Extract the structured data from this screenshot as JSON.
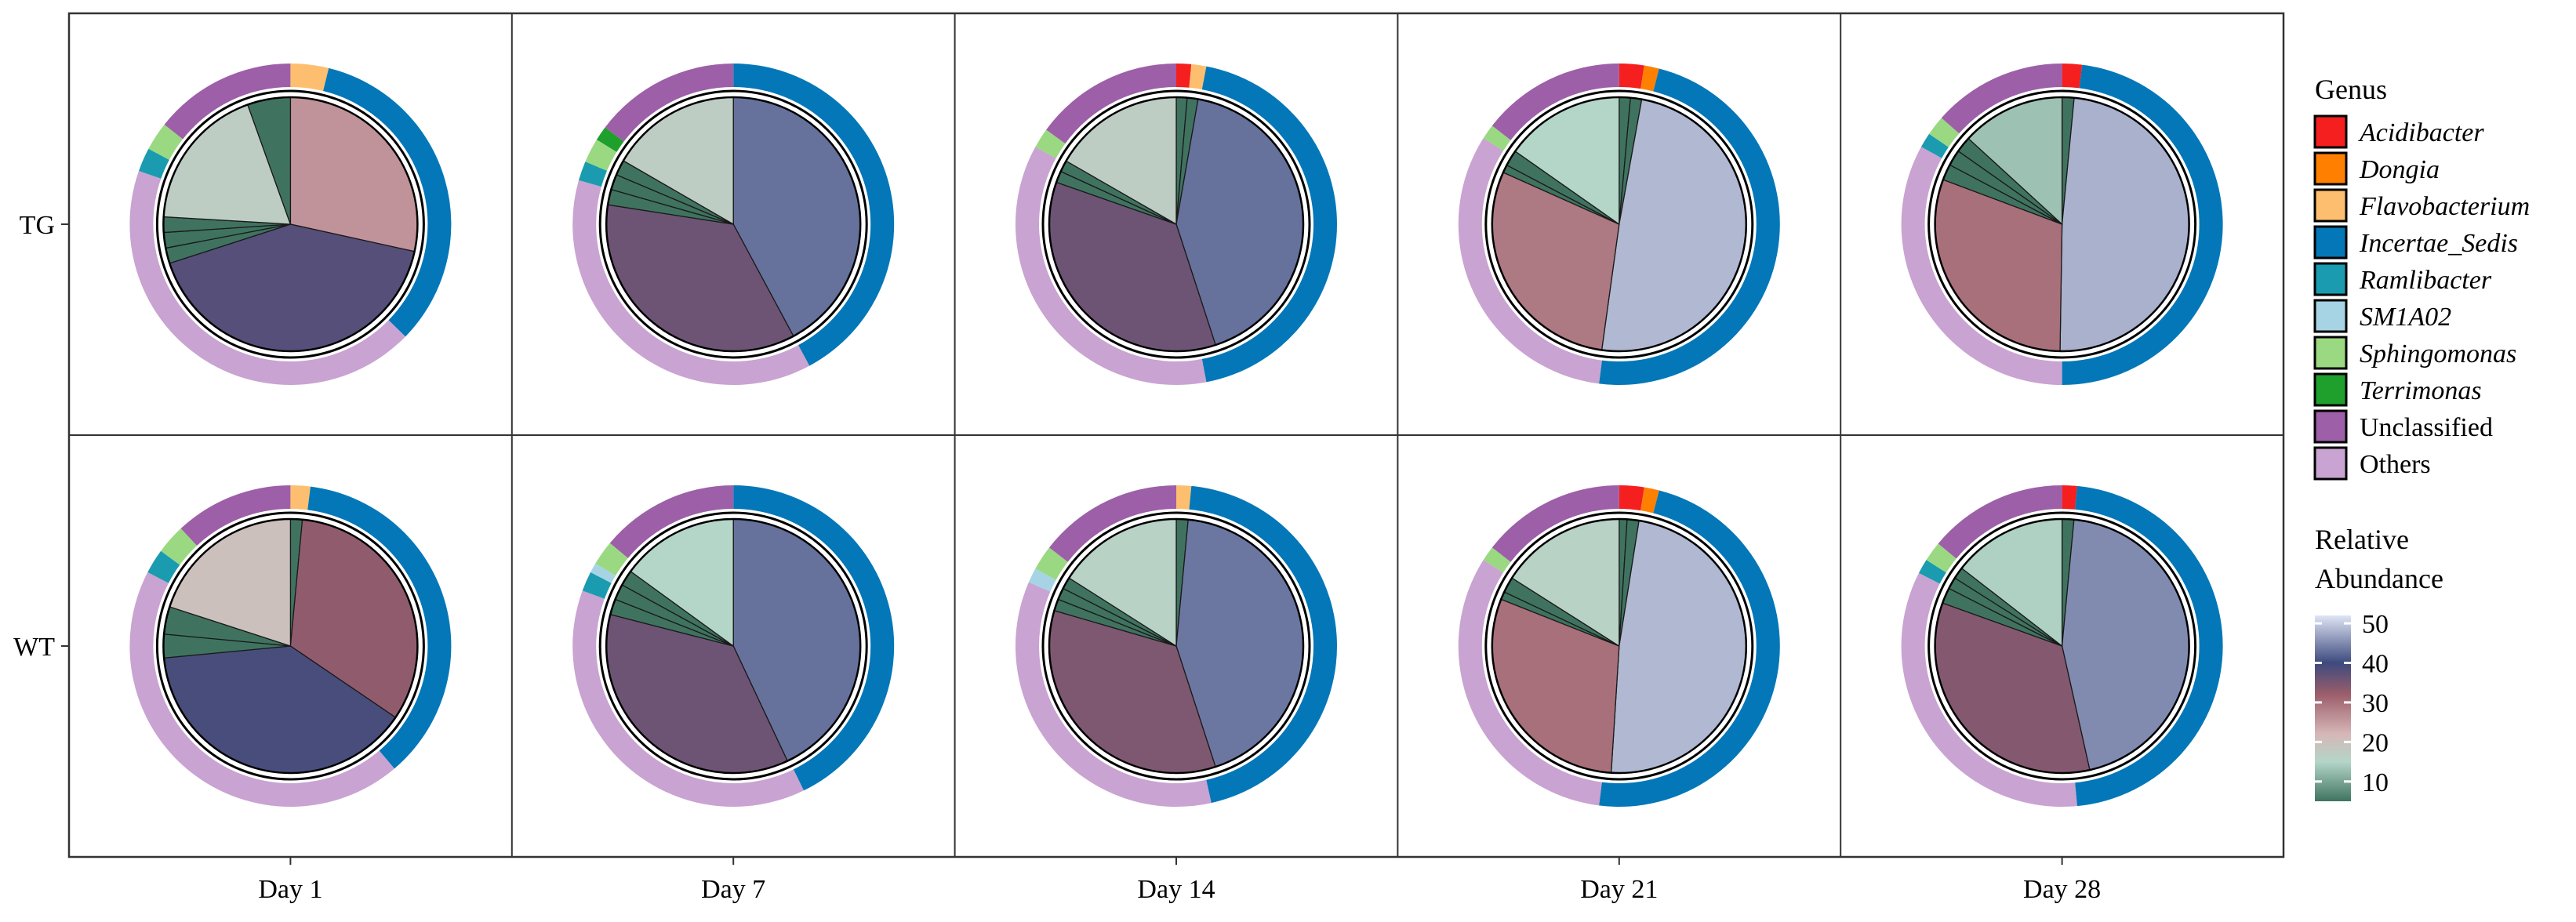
{
  "chart_data": {
    "type": "pie",
    "subtype": "faceted-donut-with-inner-pie",
    "columns": [
      "Day 1",
      "Day 7",
      "Day 14",
      "Day 21",
      "Day 28"
    ],
    "rows": [
      "TG",
      "WT"
    ],
    "legend_genus": {
      "title": "Genus",
      "entries": [
        {
          "name": "Acidibacter",
          "color": "#f51f1f",
          "italic": true
        },
        {
          "name": "Dongia",
          "color": "#ff8000",
          "italic": true
        },
        {
          "name": "Flavobacterium",
          "color": "#fdbf6f",
          "italic": true
        },
        {
          "name": "Incertae_Sedis",
          "color": "#0377b8",
          "italic": true
        },
        {
          "name": "Ramlibacter",
          "color": "#1a9bb0",
          "italic": true
        },
        {
          "name": "SM1A02",
          "color": "#a6d4e4",
          "italic": true
        },
        {
          "name": "Sphingomonas",
          "color": "#9ad981",
          "italic": true
        },
        {
          "name": "Terrimonas",
          "color": "#1f9f2c",
          "italic": true
        },
        {
          "name": "Unclassified",
          "color": "#9d5fa8",
          "italic": false
        },
        {
          "name": "Others",
          "color": "#c9a3d1",
          "italic": false
        }
      ]
    },
    "legend_abundance": {
      "title_lines": [
        "Relative",
        "Abundance"
      ],
      "ticks": [
        10,
        20,
        30,
        40,
        50
      ],
      "range": [
        5,
        52
      ],
      "stops": [
        {
          "v": 5,
          "c": "#3f7360"
        },
        {
          "v": 15,
          "c": "#b4d6c8"
        },
        {
          "v": 22,
          "c": "#d6b7b7"
        },
        {
          "v": 32,
          "c": "#9c5e6b"
        },
        {
          "v": 40,
          "c": "#3d4a7e"
        },
        {
          "v": 52,
          "c": "#dfe5f5"
        }
      ]
    },
    "panels": [
      {
        "row": "TG",
        "col": "Day 1",
        "outer": [
          {
            "g": "Flavobacterium",
            "v": 4
          },
          {
            "g": "Incertae_Sedis",
            "v": 35
          },
          {
            "g": "Others",
            "v": 45
          },
          {
            "g": "Ramlibacter",
            "v": 2.5
          },
          {
            "g": "Sphingomonas",
            "v": 3
          },
          {
            "g": "Unclassified",
            "v": 15
          }
        ],
        "inner": [
          {
            "v": 26
          },
          {
            "v": 38
          },
          {
            "v": 1.8
          },
          {
            "v": 1.8
          },
          {
            "v": 1.8
          },
          {
            "v": 17
          },
          {
            "v": 5
          }
        ]
      },
      {
        "row": "TG",
        "col": "Day 7",
        "outer": [
          {
            "g": "Incertae_Sedis",
            "v": 43
          },
          {
            "g": "Others",
            "v": 38
          },
          {
            "g": "Ramlibacter",
            "v": 2
          },
          {
            "g": "Sphingomonas",
            "v": 2.5
          },
          {
            "g": "Terrimonas",
            "v": 1.5
          },
          {
            "g": "Unclassified",
            "v": 15
          }
        ],
        "inner": [
          {
            "v": 43
          },
          {
            "v": 36
          },
          {
            "v": 2
          },
          {
            "v": 2
          },
          {
            "v": 2
          },
          {
            "v": 17
          }
        ]
      },
      {
        "row": "TG",
        "col": "Day 14",
        "outer": [
          {
            "g": "Acidibacter",
            "v": 1.5
          },
          {
            "g": "Flavobacterium",
            "v": 1.5
          },
          {
            "g": "Incertae_Sedis",
            "v": 44
          },
          {
            "g": "Others",
            "v": 36
          },
          {
            "g": "Sphingomonas",
            "v": 2
          },
          {
            "g": "Unclassified",
            "v": 15
          }
        ],
        "inner": [
          {
            "v": 1.4
          },
          {
            "v": 1.4
          },
          {
            "v": 43
          },
          {
            "v": 36
          },
          {
            "v": 1.5
          },
          {
            "v": 1.5
          },
          {
            "v": 17
          }
        ]
      },
      {
        "row": "TG",
        "col": "Day 21",
        "outer": [
          {
            "g": "Acidibacter",
            "v": 2.5
          },
          {
            "g": "Dongia",
            "v": 1.5
          },
          {
            "g": "Incertae_Sedis",
            "v": 48
          },
          {
            "g": "Others",
            "v": 32
          },
          {
            "g": "Sphingomonas",
            "v": 1.5
          },
          {
            "g": "Unclassified",
            "v": 14.5
          }
        ],
        "inner": [
          {
            "v": 1.4
          },
          {
            "v": 1.4
          },
          {
            "v": 48.5
          },
          {
            "v": 29
          },
          {
            "v": 1
          },
          {
            "v": 2
          },
          {
            "v": 15
          }
        ]
      },
      {
        "row": "TG",
        "col": "Day 28",
        "outer": [
          {
            "g": "Acidibacter",
            "v": 2
          },
          {
            "g": "Incertae_Sedis",
            "v": 48
          },
          {
            "g": "Others",
            "v": 33
          },
          {
            "g": "Ramlibacter",
            "v": 1.5
          },
          {
            "g": "Sphingomonas",
            "v": 2
          },
          {
            "g": "Unclassified",
            "v": 13.5
          }
        ],
        "inner": [
          {
            "v": 1.5
          },
          {
            "v": 48
          },
          {
            "v": 30
          },
          {
            "v": 2
          },
          {
            "v": 2
          },
          {
            "v": 2
          },
          {
            "v": 13
          }
        ]
      },
      {
        "row": "WT",
        "col": "Day 1",
        "outer": [
          {
            "g": "Flavobacterium",
            "v": 2
          },
          {
            "g": "Incertae_Sedis",
            "v": 37
          },
          {
            "g": "Others",
            "v": 44
          },
          {
            "g": "Ramlibacter",
            "v": 2.5
          },
          {
            "g": "Sphingomonas",
            "v": 3
          },
          {
            "g": "Unclassified",
            "v": 12
          }
        ],
        "inner": [
          {
            "v": 1.5
          },
          {
            "v": 33
          },
          {
            "v": 39
          },
          {
            "v": 3
          },
          {
            "v": 3.5
          },
          {
            "v": 20
          }
        ]
      },
      {
        "row": "WT",
        "col": "Day 7",
        "outer": [
          {
            "g": "Incertae_Sedis",
            "v": 43
          },
          {
            "g": "Others",
            "v": 38
          },
          {
            "g": "Ramlibacter",
            "v": 2
          },
          {
            "g": "SM1A02",
            "v": 1
          },
          {
            "g": "Sphingomonas",
            "v": 2.5
          },
          {
            "g": "Unclassified",
            "v": 14
          }
        ],
        "inner": [
          {
            "v": 43
          },
          {
            "v": 36
          },
          {
            "v": 2
          },
          {
            "v": 2
          },
          {
            "v": 2
          },
          {
            "v": 15
          }
        ]
      },
      {
        "row": "WT",
        "col": "Day 14",
        "outer": [
          {
            "g": "Flavobacterium",
            "v": 1.5
          },
          {
            "g": "Incertae_Sedis",
            "v": 45
          },
          {
            "g": "Others",
            "v": 35
          },
          {
            "g": "SM1A02",
            "v": 1.5
          },
          {
            "g": "Sphingomonas",
            "v": 2.5
          },
          {
            "g": "Unclassified",
            "v": 14.5
          }
        ],
        "inner": [
          {
            "v": 1.5
          },
          {
            "v": 43.5
          },
          {
            "v": 34.5
          },
          {
            "v": 1.5
          },
          {
            "v": 1.5
          },
          {
            "v": 1.5
          },
          {
            "v": 16
          }
        ]
      },
      {
        "row": "WT",
        "col": "Day 21",
        "outer": [
          {
            "g": "Acidibacter",
            "v": 2.5
          },
          {
            "g": "Dongia",
            "v": 1.5
          },
          {
            "g": "Incertae_Sedis",
            "v": 48
          },
          {
            "g": "Others",
            "v": 32
          },
          {
            "g": "Sphingomonas",
            "v": 1.5
          },
          {
            "g": "Unclassified",
            "v": 14.5
          }
        ],
        "inner": [
          {
            "v": 1
          },
          {
            "v": 1.5
          },
          {
            "v": 48.5
          },
          {
            "v": 30
          },
          {
            "v": 1
          },
          {
            "v": 2
          },
          {
            "v": 16
          }
        ]
      },
      {
        "row": "WT",
        "col": "Day 28",
        "outer": [
          {
            "g": "Acidibacter",
            "v": 1.5
          },
          {
            "g": "Incertae_Sedis",
            "v": 47
          },
          {
            "g": "Others",
            "v": 34
          },
          {
            "g": "Ramlibacter",
            "v": 1.5
          },
          {
            "g": "Sphingomonas",
            "v": 2
          },
          {
            "g": "Unclassified",
            "v": 14
          }
        ],
        "inner": [
          {
            "v": 1.5
          },
          {
            "v": 45
          },
          {
            "v": 34
          },
          {
            "v": 2
          },
          {
            "v": 1.5
          },
          {
            "v": 1.5
          },
          {
            "v": 14.5
          }
        ]
      }
    ]
  }
}
